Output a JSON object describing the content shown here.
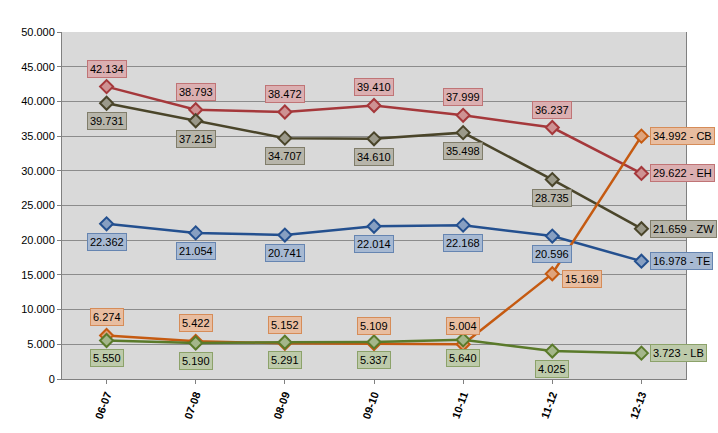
{
  "chart_data": {
    "type": "line",
    "categories": [
      "06-07",
      "07-08",
      "08-09",
      "09-10",
      "10-11",
      "11-12",
      "12-13"
    ],
    "ylim": [
      0,
      50000
    ],
    "yticks": [
      0,
      {
        "value": 5000,
        "label": "5.000"
      },
      {
        "value": 10000,
        "label": "10.000"
      },
      {
        "value": 15000,
        "label": "15.000"
      },
      {
        "value": 20000,
        "label": "20.000"
      },
      {
        "value": 25000,
        "label": "25.000"
      },
      {
        "value": 30000,
        "label": "30.000"
      },
      {
        "value": 35000,
        "label": "35.000"
      },
      {
        "value": 40000,
        "label": "40.000"
      },
      {
        "value": 45000,
        "label": "45.000"
      },
      {
        "value": 50000,
        "label": "50.000"
      }
    ],
    "grid": true,
    "marker": "diamond",
    "data_labels": true,
    "series": [
      {
        "name": "EH",
        "color": "#A5383B",
        "values": [
          42134,
          38793,
          38472,
          39410,
          37999,
          36237,
          29622
        ],
        "value_labels": [
          "42.134",
          "38.793",
          "38.472",
          "39.410",
          "37.999",
          "36.237",
          "29.622 - EH"
        ]
      },
      {
        "name": "ZW",
        "color": "#4A452A",
        "values": [
          39731,
          37215,
          34707,
          34610,
          35498,
          28735,
          21659
        ],
        "value_labels": [
          "39.731",
          "37.215",
          "34.707",
          "34.610",
          "35.498",
          "28.735",
          "21.659 - ZW"
        ]
      },
      {
        "name": "TE",
        "color": "#24508F",
        "values": [
          22362,
          21054,
          20741,
          22014,
          22168,
          20596,
          16978
        ],
        "value_labels": [
          "22.362",
          "21.054",
          "20.741",
          "22.014",
          "22.168",
          "20.596",
          "16.978 - TE"
        ]
      },
      {
        "name": "CB",
        "color": "#C55A11",
        "values": [
          6274,
          5422,
          5152,
          5109,
          5004,
          15169,
          34992
        ],
        "value_labels": [
          "6.274",
          "5.422",
          "5.152",
          "5.109",
          "5.004",
          "15.169",
          "34.992 - CB"
        ]
      },
      {
        "name": "LB",
        "color": "#5A7A2A",
        "values": [
          5550,
          5190,
          5291,
          5337,
          5640,
          4025,
          3723
        ],
        "value_labels": [
          "5.550",
          "5.190",
          "5.291",
          "5.337",
          "5.640",
          "4.025",
          "3.723 - LB"
        ]
      }
    ]
  }
}
